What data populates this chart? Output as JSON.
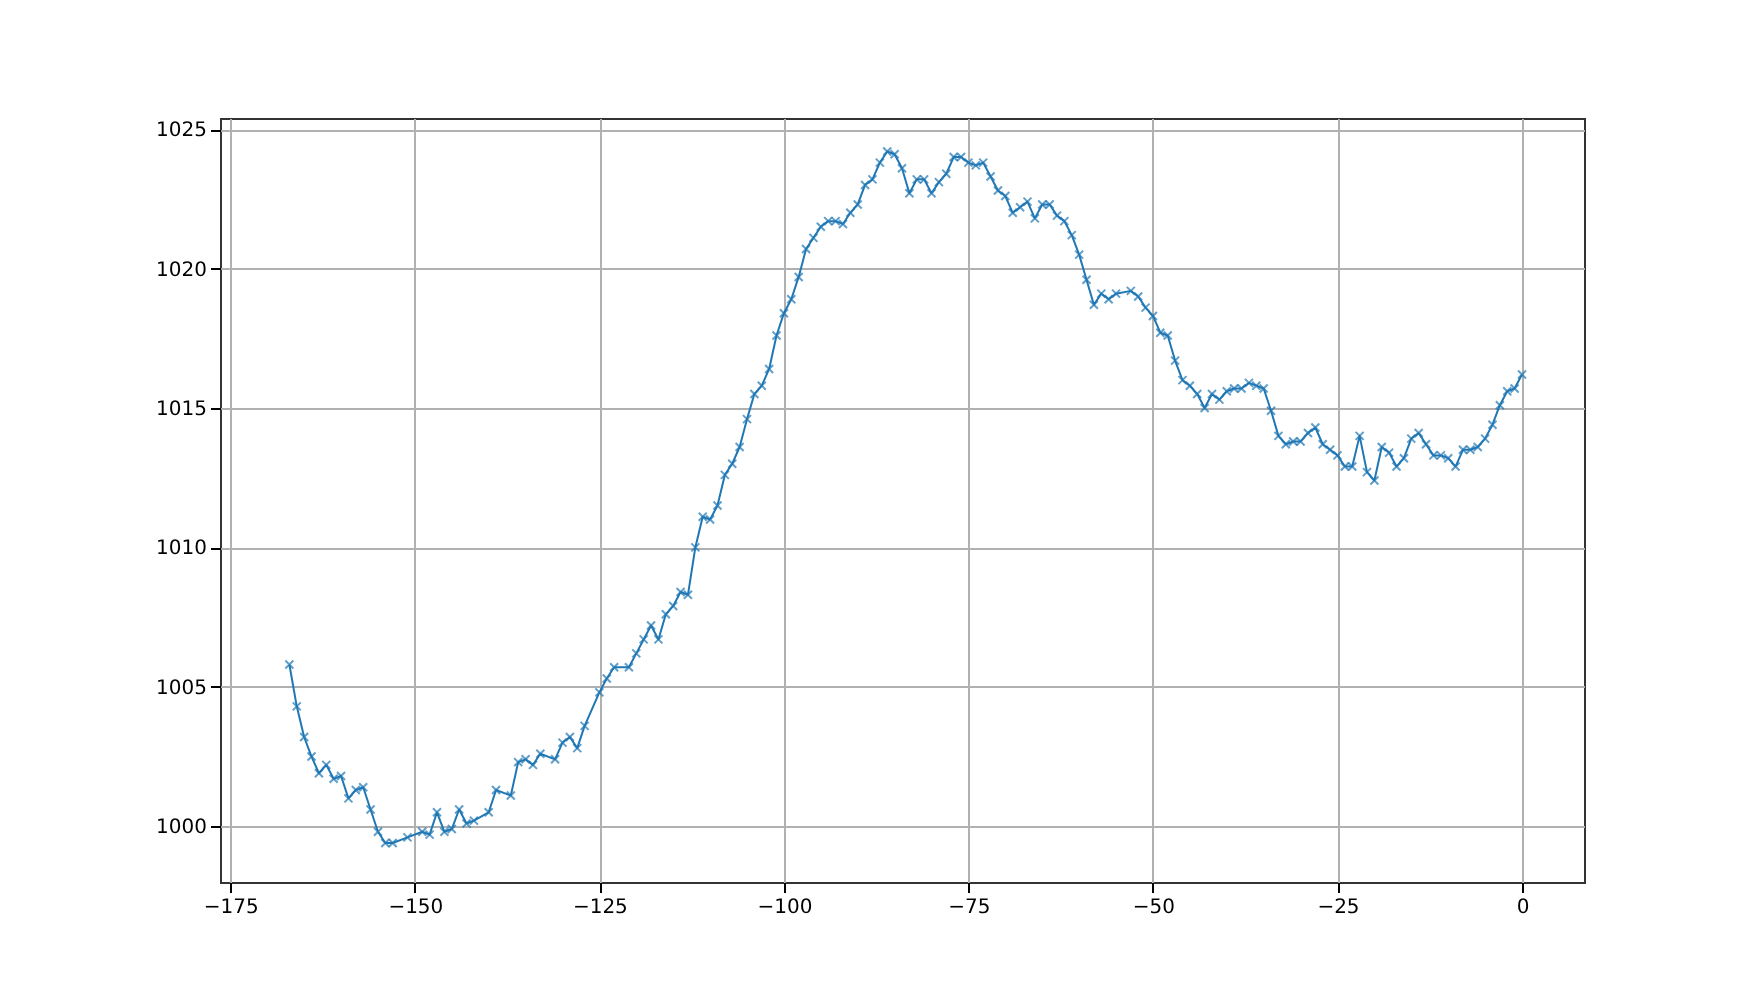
{
  "chart_data": {
    "type": "line",
    "marker": "cross",
    "grid": true,
    "xlim": [
      -176.4,
      8.4
    ],
    "ylim": [
      998,
      1025.4
    ],
    "xticks": [
      -175,
      -150,
      -125,
      -100,
      -75,
      -50,
      -25,
      0
    ],
    "yticks": [
      1000,
      1005,
      1010,
      1015,
      1020,
      1025
    ],
    "series": [
      {
        "color": "#1f77b4",
        "x": [
          -167,
          -166,
          -165,
          -164,
          -163,
          -162,
          -161,
          -160,
          -159,
          -158,
          -157,
          -156,
          -155,
          -154,
          -153,
          -151,
          -149,
          -148,
          -147,
          -146,
          -145,
          -144,
          -143,
          -142,
          -140,
          -139,
          -137,
          -136,
          -135,
          -134,
          -133,
          -131,
          -130,
          -129,
          -128,
          -127,
          -125,
          -124,
          -123,
          -121,
          -120,
          -119,
          -118,
          -117,
          -116,
          -115,
          -114,
          -113,
          -112,
          -111,
          -110,
          -109,
          -108,
          -107,
          -106,
          -105,
          -104,
          -103,
          -102,
          -101,
          -100,
          -99,
          -98,
          -97,
          -96,
          -95,
          -94,
          -93,
          -92,
          -91,
          -90,
          -89,
          -88,
          -87,
          -86,
          -85,
          -84,
          -83,
          -82,
          -81,
          -80,
          -79,
          -78,
          -77,
          -76,
          -75,
          -74,
          -73,
          -72,
          -71,
          -70,
          -69,
          -68,
          -67,
          -66,
          -65,
          -64,
          -63,
          -62,
          -61,
          -60,
          -59,
          -58,
          -57,
          -56,
          -55,
          -53,
          -52,
          -51,
          -50,
          -49,
          -48,
          -47,
          -46,
          -45,
          -44,
          -43,
          -42,
          -41,
          -40,
          -39,
          -38,
          -37,
          -36,
          -35,
          -34,
          -33,
          -32,
          -31,
          -30,
          -29,
          -28,
          -27,
          -26,
          -25,
          -24,
          -23,
          -22,
          -21,
          -20,
          -19,
          -18,
          -17,
          -16,
          -15,
          -14,
          -13,
          -12,
          -11,
          -10,
          -9,
          -8,
          -7,
          -6,
          -5,
          -4,
          -3,
          -2,
          -1,
          0
        ],
        "values": [
          1005.8,
          1004.3,
          1003.2,
          1002.5,
          1001.9,
          1002.2,
          1001.7,
          1001.8,
          1001.0,
          1001.3,
          1001.4,
          1000.6,
          999.8,
          999.4,
          999.4,
          999.6,
          999.8,
          999.7,
          1000.5,
          999.8,
          999.9,
          1000.6,
          1000.1,
          1000.2,
          1000.5,
          1001.3,
          1001.1,
          1002.3,
          1002.4,
          1002.2,
          1002.6,
          1002.4,
          1003.0,
          1003.2,
          1002.8,
          1003.6,
          1004.8,
          1005.3,
          1005.7,
          1005.7,
          1006.2,
          1006.7,
          1007.2,
          1006.7,
          1007.6,
          1007.9,
          1008.4,
          1008.3,
          1010.0,
          1011.1,
          1011.0,
          1011.5,
          1012.6,
          1013.0,
          1013.6,
          1014.6,
          1015.5,
          1015.8,
          1016.4,
          1017.6,
          1018.4,
          1018.9,
          1019.7,
          1020.7,
          1021.1,
          1021.5,
          1021.7,
          1021.7,
          1021.6,
          1022.0,
          1022.3,
          1023.0,
          1023.2,
          1023.8,
          1024.2,
          1024.1,
          1023.6,
          1022.7,
          1023.2,
          1023.2,
          1022.7,
          1023.1,
          1023.4,
          1024.0,
          1024.0,
          1023.8,
          1023.7,
          1023.8,
          1023.3,
          1022.8,
          1022.6,
          1022.0,
          1022.2,
          1022.4,
          1021.8,
          1022.3,
          1022.3,
          1021.9,
          1021.7,
          1021.2,
          1020.5,
          1019.6,
          1018.7,
          1019.1,
          1018.9,
          1019.1,
          1019.2,
          1019.0,
          1018.6,
          1018.3,
          1017.7,
          1017.6,
          1016.7,
          1016.0,
          1015.8,
          1015.5,
          1015.0,
          1015.5,
          1015.3,
          1015.6,
          1015.7,
          1015.7,
          1015.9,
          1015.8,
          1015.7,
          1014.9,
          1014.0,
          1013.7,
          1013.8,
          1013.8,
          1014.1,
          1014.3,
          1013.7,
          1013.5,
          1013.3,
          1012.9,
          1012.9,
          1014.0,
          1012.7,
          1012.4,
          1013.6,
          1013.4,
          1012.9,
          1013.2,
          1013.9,
          1014.1,
          1013.7,
          1013.3,
          1013.3,
          1013.2,
          1012.9,
          1013.5,
          1013.5,
          1013.6,
          1013.9,
          1014.4,
          1015.1,
          1015.6,
          1015.7,
          1016.2
        ]
      }
    ]
  }
}
